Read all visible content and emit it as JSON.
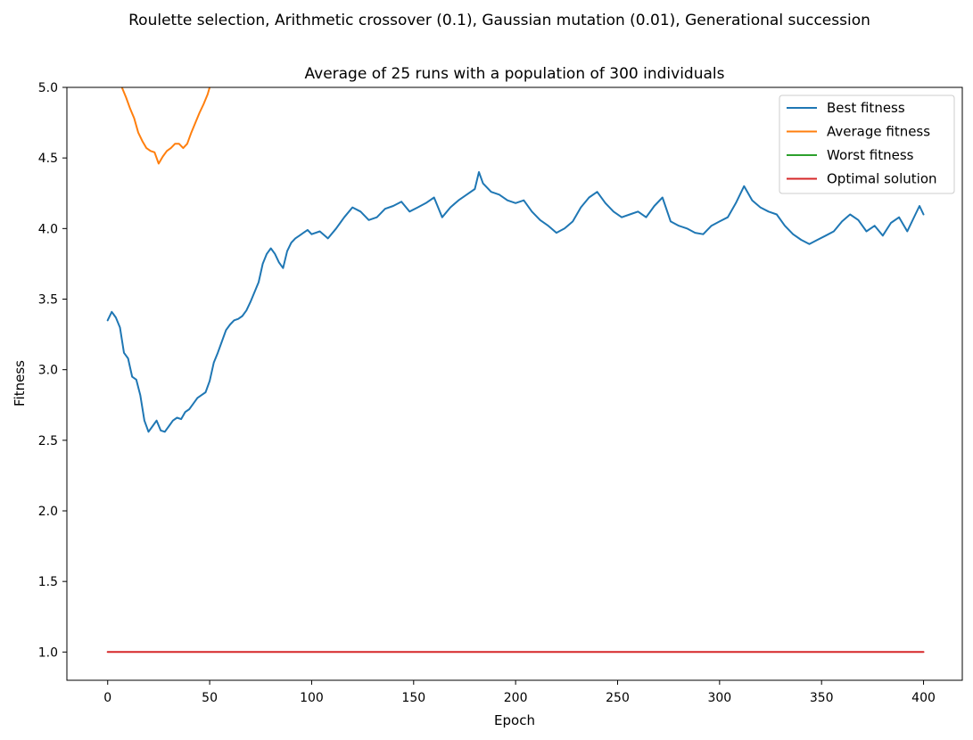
{
  "figure": {
    "suptitle": "Roulette selection, Arithmetic crossover (0.1), Gaussian mutation (0.01), Generational succession"
  },
  "chart_data": {
    "type": "line",
    "title": "Average of 25 runs with a population of 300 individuals",
    "xlabel": "Epoch",
    "ylabel": "Fitness",
    "xlim": [
      -20,
      419
    ],
    "ylim": [
      0.8,
      5.0
    ],
    "xticks": [
      0,
      50,
      100,
      150,
      200,
      250,
      300,
      350,
      400
    ],
    "yticks": [
      1.0,
      1.5,
      2.0,
      2.5,
      3.0,
      3.5,
      4.0,
      4.5,
      5.0
    ],
    "xtick_labels": [
      "0",
      "50",
      "100",
      "150",
      "200",
      "250",
      "300",
      "350",
      "400"
    ],
    "ytick_labels": [
      "1.0",
      "1.5",
      "2.0",
      "2.5",
      "3.0",
      "3.5",
      "4.0",
      "4.5",
      "5.0"
    ],
    "grid": false,
    "legend_position": "top-right",
    "series": [
      {
        "name": "Best fitness",
        "color": "#1f77b4",
        "x": [
          0,
          2,
          4,
          6,
          8,
          10,
          12,
          14,
          16,
          18,
          20,
          22,
          24,
          26,
          28,
          30,
          32,
          34,
          36,
          38,
          40,
          42,
          44,
          46,
          48,
          50,
          52,
          54,
          56,
          58,
          60,
          62,
          64,
          66,
          68,
          70,
          72,
          74,
          76,
          78,
          80,
          82,
          84,
          86,
          88,
          90,
          92,
          94,
          96,
          98,
          100,
          104,
          108,
          112,
          116,
          120,
          124,
          128,
          132,
          136,
          140,
          144,
          148,
          152,
          156,
          160,
          164,
          168,
          172,
          176,
          180,
          182,
          184,
          188,
          192,
          196,
          200,
          204,
          208,
          212,
          216,
          220,
          224,
          228,
          232,
          236,
          240,
          244,
          248,
          252,
          256,
          260,
          264,
          268,
          272,
          276,
          280,
          284,
          288,
          292,
          296,
          300,
          304,
          308,
          312,
          316,
          320,
          324,
          328,
          332,
          336,
          340,
          344,
          348,
          352,
          356,
          360,
          364,
          368,
          372,
          376,
          380,
          384,
          388,
          392,
          396,
          398,
          400
        ],
        "values": [
          3.35,
          3.41,
          3.37,
          3.3,
          3.12,
          3.08,
          2.95,
          2.93,
          2.82,
          2.64,
          2.56,
          2.6,
          2.64,
          2.57,
          2.56,
          2.6,
          2.64,
          2.66,
          2.65,
          2.7,
          2.72,
          2.76,
          2.8,
          2.82,
          2.84,
          2.92,
          3.05,
          3.12,
          3.2,
          3.28,
          3.32,
          3.35,
          3.36,
          3.38,
          3.42,
          3.48,
          3.55,
          3.62,
          3.75,
          3.82,
          3.86,
          3.82,
          3.76,
          3.72,
          3.84,
          3.9,
          3.93,
          3.95,
          3.97,
          3.99,
          3.96,
          3.98,
          3.93,
          4.0,
          4.08,
          4.15,
          4.12,
          4.06,
          4.08,
          4.14,
          4.16,
          4.19,
          4.12,
          4.15,
          4.18,
          4.22,
          4.08,
          4.15,
          4.2,
          4.24,
          4.28,
          4.4,
          4.32,
          4.26,
          4.24,
          4.2,
          4.18,
          4.2,
          4.12,
          4.06,
          4.02,
          3.97,
          4.0,
          4.05,
          4.15,
          4.22,
          4.26,
          4.18,
          4.12,
          4.08,
          4.1,
          4.12,
          4.08,
          4.16,
          4.22,
          4.05,
          4.02,
          4.0,
          3.97,
          3.96,
          4.02,
          4.05,
          4.08,
          4.18,
          4.3,
          4.2,
          4.15,
          4.12,
          4.1,
          4.02,
          3.96,
          3.92,
          3.89,
          3.92,
          3.95,
          3.98,
          4.05,
          4.1,
          4.06,
          3.98,
          4.02,
          3.95,
          4.04,
          4.08,
          3.98,
          4.1,
          4.16,
          4.1
        ]
      },
      {
        "name": "Average fitness",
        "color": "#ff7f0e",
        "x": [
          7,
          9,
          11,
          13,
          15,
          17,
          19,
          21,
          23,
          25,
          27,
          29,
          31,
          33,
          35,
          37,
          39,
          41,
          43,
          45,
          47,
          49,
          50
        ],
        "values": [
          5.0,
          4.93,
          4.85,
          4.78,
          4.68,
          4.62,
          4.57,
          4.55,
          4.54,
          4.46,
          4.51,
          4.55,
          4.57,
          4.6,
          4.6,
          4.57,
          4.6,
          4.68,
          4.75,
          4.82,
          4.88,
          4.95,
          5.0
        ]
      },
      {
        "name": "Worst fitness",
        "color": "#2ca02c",
        "x": [],
        "values": []
      },
      {
        "name": "Optimal solution",
        "color": "#d62728",
        "x": [
          0,
          400
        ],
        "values": [
          1.0,
          1.0
        ]
      }
    ]
  }
}
